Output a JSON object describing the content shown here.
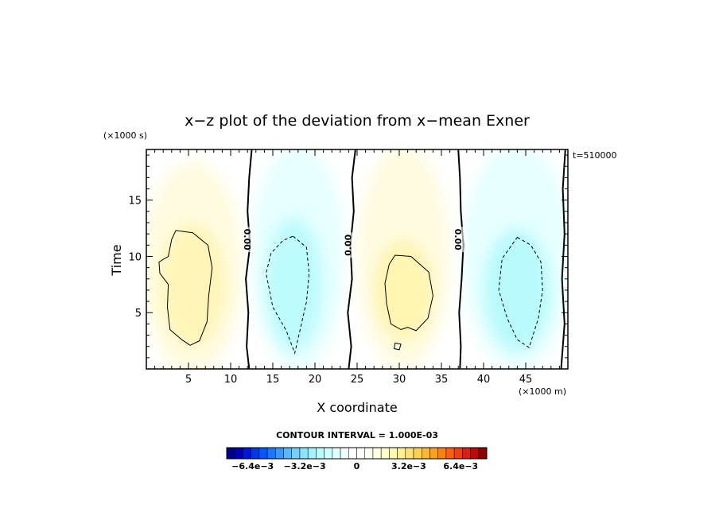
{
  "chart_data": {
    "type": "heatmap",
    "title": "x−z plot of the deviation from x−mean Exner",
    "time_label": "t=510000",
    "xlabel": "X coordinate",
    "xunit": "(×1000 m)",
    "ylabel": "Time",
    "yunit": "(×1000 s)",
    "xlim": [
      0,
      50
    ],
    "ylim": [
      0,
      19.5
    ],
    "xticks": [
      5,
      10,
      15,
      20,
      25,
      30,
      35,
      40,
      45
    ],
    "yticks": [
      5,
      10,
      15
    ],
    "contour_interval_text": "CONTOUR INTERVAL = 1.000E-03",
    "contour_labels": [
      "0.00",
      "0.00",
      "0.00"
    ],
    "colorbar": {
      "min": -0.008,
      "max": 0.008,
      "tick_labels": [
        "−6.4e−3",
        "−3.2e−3",
        "0",
        "3.2e−3",
        "6.4e−3"
      ],
      "tick_values": [
        -0.0064,
        -0.0032,
        0,
        0.0032,
        0.0064
      ]
    },
    "field": {
      "description_values": [
        {
          "region": "x 0-12",
          "extreme": 0.0015
        },
        {
          "region": "x 12-25",
          "extreme": -0.0015
        },
        {
          "region": "x 25-37",
          "extreme": 0.0015
        },
        {
          "region": "x 37-50",
          "extreme": -0.0015
        }
      ]
    }
  }
}
